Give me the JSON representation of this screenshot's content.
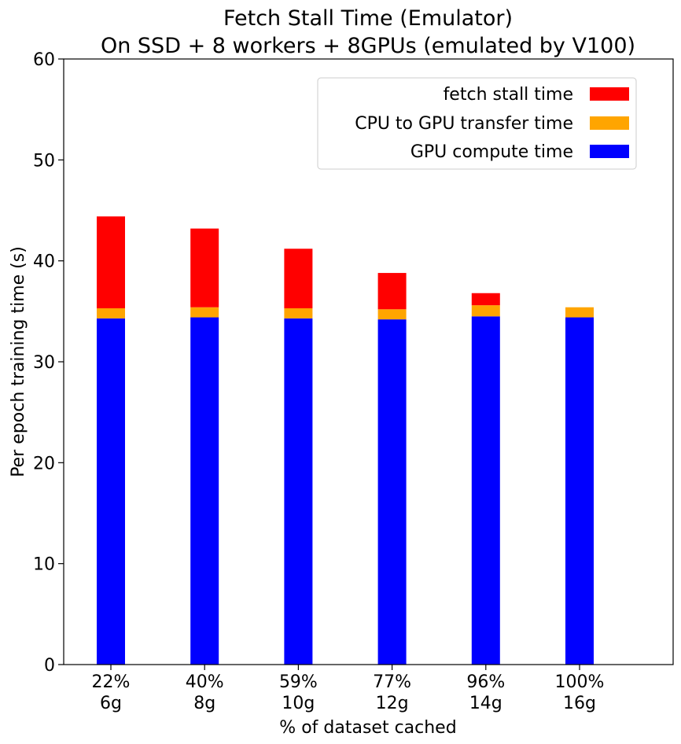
{
  "chart_data": {
    "type": "bar",
    "stacked": true,
    "title_line1": "Fetch Stall Time (Emulator)",
    "title_line2": "On SSD + 8 workers + 8GPUs (emulated by V100)",
    "xlabel": "% of dataset cached",
    "ylabel": "Per epoch training time (s)",
    "ylim": [
      0,
      60
    ],
    "yticks": [
      "0",
      "10",
      "20",
      "30",
      "40",
      "50",
      "60"
    ],
    "categories": [
      {
        "pct": "22%",
        "size": "6g"
      },
      {
        "pct": "40%",
        "size": "8g"
      },
      {
        "pct": "59%",
        "size": "10g"
      },
      {
        "pct": "77%",
        "size": "12g"
      },
      {
        "pct": "96%",
        "size": "14g"
      },
      {
        "pct": "100%",
        "size": "16g"
      }
    ],
    "series": [
      {
        "name": "GPU compute time",
        "color": "#0000ff",
        "values": [
          34.3,
          34.4,
          34.3,
          34.2,
          34.5,
          34.4
        ]
      },
      {
        "name": "CPU to GPU transfer time",
        "color": "#ffa500",
        "values": [
          1.0,
          1.0,
          1.0,
          1.0,
          1.1,
          1.0
        ]
      },
      {
        "name": "fetch stall time",
        "color": "#ff0000",
        "values": [
          9.1,
          7.8,
          5.9,
          3.6,
          1.2,
          0.0
        ]
      }
    ],
    "legend": {
      "placement": "top-right",
      "order": [
        "fetch stall time",
        "CPU to GPU transfer time",
        "GPU compute time"
      ]
    },
    "grid": false
  }
}
